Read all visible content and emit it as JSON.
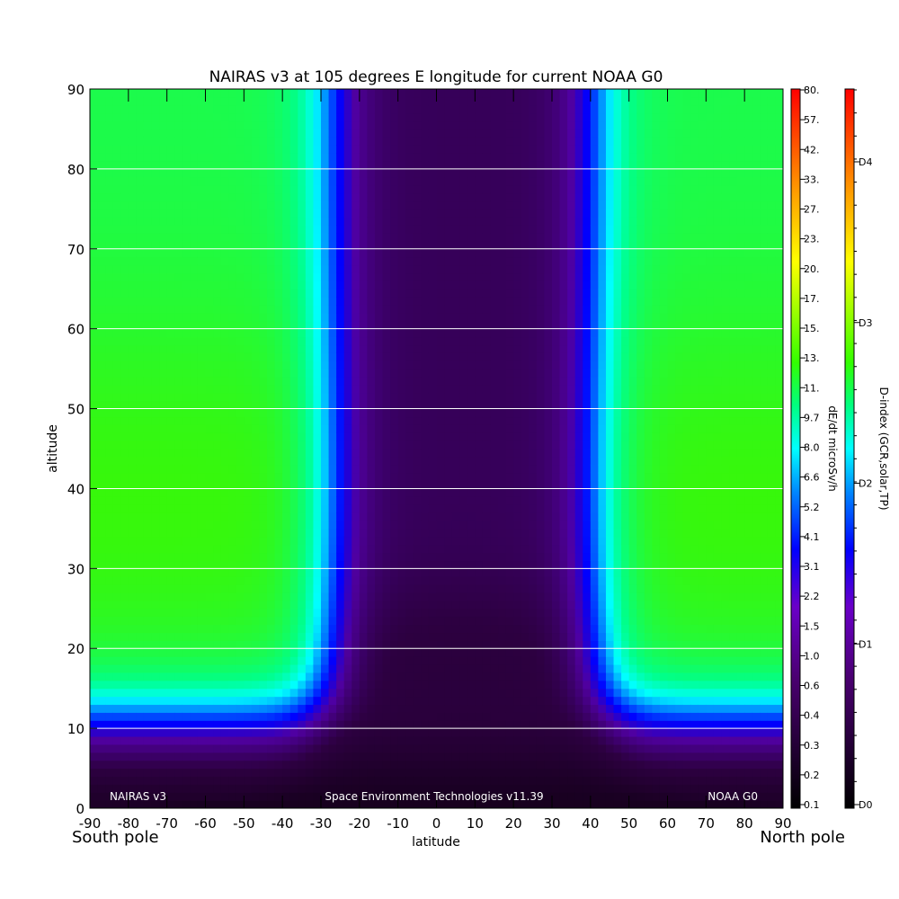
{
  "chart_data": {
    "type": "heatmap",
    "title": "NAIRAS v3 at 105 degrees E longitude for current NOAA G0",
    "xlabel": "latitude",
    "ylabel": "altitude",
    "xlim": [
      -90,
      90
    ],
    "ylim": [
      0,
      90
    ],
    "x_ticks": [
      -90,
      -80,
      -70,
      -60,
      -50,
      -40,
      -30,
      -20,
      -10,
      0,
      10,
      20,
      30,
      40,
      50,
      60,
      70,
      80,
      90
    ],
    "y_ticks": [
      0,
      10,
      20,
      30,
      40,
      50,
      60,
      70,
      80,
      90
    ],
    "x_tick_labels": [
      "-90",
      "-80",
      "-70",
      "-60",
      "-50",
      "-40",
      "-30",
      "-20",
      "-10",
      "0",
      "10",
      "20",
      "30",
      "40",
      "50",
      "60",
      "70",
      "80",
      "90"
    ],
    "y_tick_labels": [
      "0",
      "10",
      "20",
      "30",
      "40",
      "50",
      "60",
      "70",
      "80",
      "90"
    ],
    "grid": "horizontal lines",
    "pole_labels": {
      "left": "South pole",
      "right": "North pole"
    },
    "annotations": {
      "left": "NAIRAS v3",
      "center": "Space Environment Technologies v11.39",
      "right": "NOAA G0"
    },
    "colorbar_dose": {
      "label": "dE/dt microSv/h",
      "tick_labels": [
        "0.1",
        "0.2",
        "0.3",
        "0.4",
        "0.6",
        "1.0",
        "1.5",
        "2.2",
        "3.1",
        "4.1",
        "5.2",
        "6.6",
        "8.0",
        "9.7",
        "11.",
        "13.",
        "15.",
        "17.",
        "20.",
        "23.",
        "27.",
        "33.",
        "42.",
        "57.",
        "80."
      ]
    },
    "colorbar_dindex": {
      "label": "D-index (GCR,solar,TP)",
      "tick_labels": [
        "D0",
        "D1",
        "D2",
        "D3",
        "D4"
      ]
    },
    "colors": {
      "green": "#3cf700",
      "cyan": "#00ffff",
      "blue": "#0000ff",
      "purple": "#3a0060",
      "dark": "#120012"
    }
  }
}
